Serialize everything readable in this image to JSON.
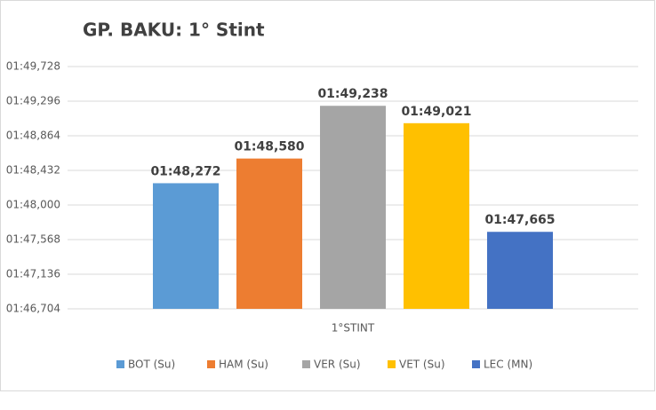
{
  "chart_data": {
    "type": "bar",
    "title": "GP. BAKU: 1° Stint",
    "categories": [
      "1°STINT"
    ],
    "series": [
      {
        "name": "BOT (Su)",
        "color": "#5b9bd5",
        "values": [
          108.272
        ],
        "value_labels": [
          "01:48,272"
        ]
      },
      {
        "name": "HAM (Su)",
        "color": "#ed7d31",
        "values": [
          108.58
        ],
        "value_labels": [
          "01:48,580"
        ]
      },
      {
        "name": "VER (Su)",
        "color": "#a5a5a5",
        "values": [
          109.238
        ],
        "value_labels": [
          "01:49,238"
        ]
      },
      {
        "name": "VET (Su)",
        "color": "#ffc000",
        "values": [
          109.021
        ],
        "value_labels": [
          "01:49,021"
        ]
      },
      {
        "name": "LEC (MN)",
        "color": "#4472c4",
        "values": [
          107.665
        ],
        "value_labels": [
          "01:47,665"
        ]
      }
    ],
    "ylim": [
      106.704,
      109.728
    ],
    "yticks": [
      {
        "value": 106.704,
        "label": "01:46,704"
      },
      {
        "value": 107.136,
        "label": "01:47,136"
      },
      {
        "value": 107.568,
        "label": "01:47,568"
      },
      {
        "value": 108.0,
        "label": "01:48,000"
      },
      {
        "value": 108.432,
        "label": "01:48,432"
      },
      {
        "value": 108.864,
        "label": "01:48,864"
      },
      {
        "value": 109.296,
        "label": "01:49,296"
      },
      {
        "value": 109.728,
        "label": "01:49,728"
      }
    ],
    "grid": true,
    "legend": "bottom"
  }
}
